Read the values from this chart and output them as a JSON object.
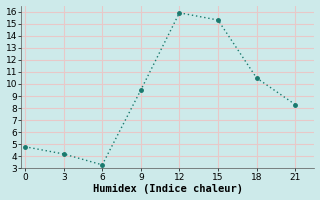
{
  "x": [
    0,
    3,
    6,
    9,
    12,
    15,
    18,
    21
  ],
  "y": [
    4.8,
    4.2,
    3.3,
    9.5,
    15.9,
    15.3,
    10.5,
    8.3
  ],
  "xlabel": "Humidex (Indice chaleur)",
  "xlim": [
    -0.3,
    22.5
  ],
  "ylim": [
    3,
    16.5
  ],
  "yticks": [
    3,
    4,
    5,
    6,
    7,
    8,
    9,
    10,
    11,
    12,
    13,
    14,
    15,
    16
  ],
  "xticks": [
    0,
    3,
    6,
    9,
    12,
    15,
    18,
    21
  ],
  "line_color": "#1a7a6e",
  "marker": "o",
  "bg_color": "#cdeaea",
  "grid_color": "#e8c8c8",
  "xlabel_fontsize": 7.5,
  "tick_fontsize": 6.5
}
